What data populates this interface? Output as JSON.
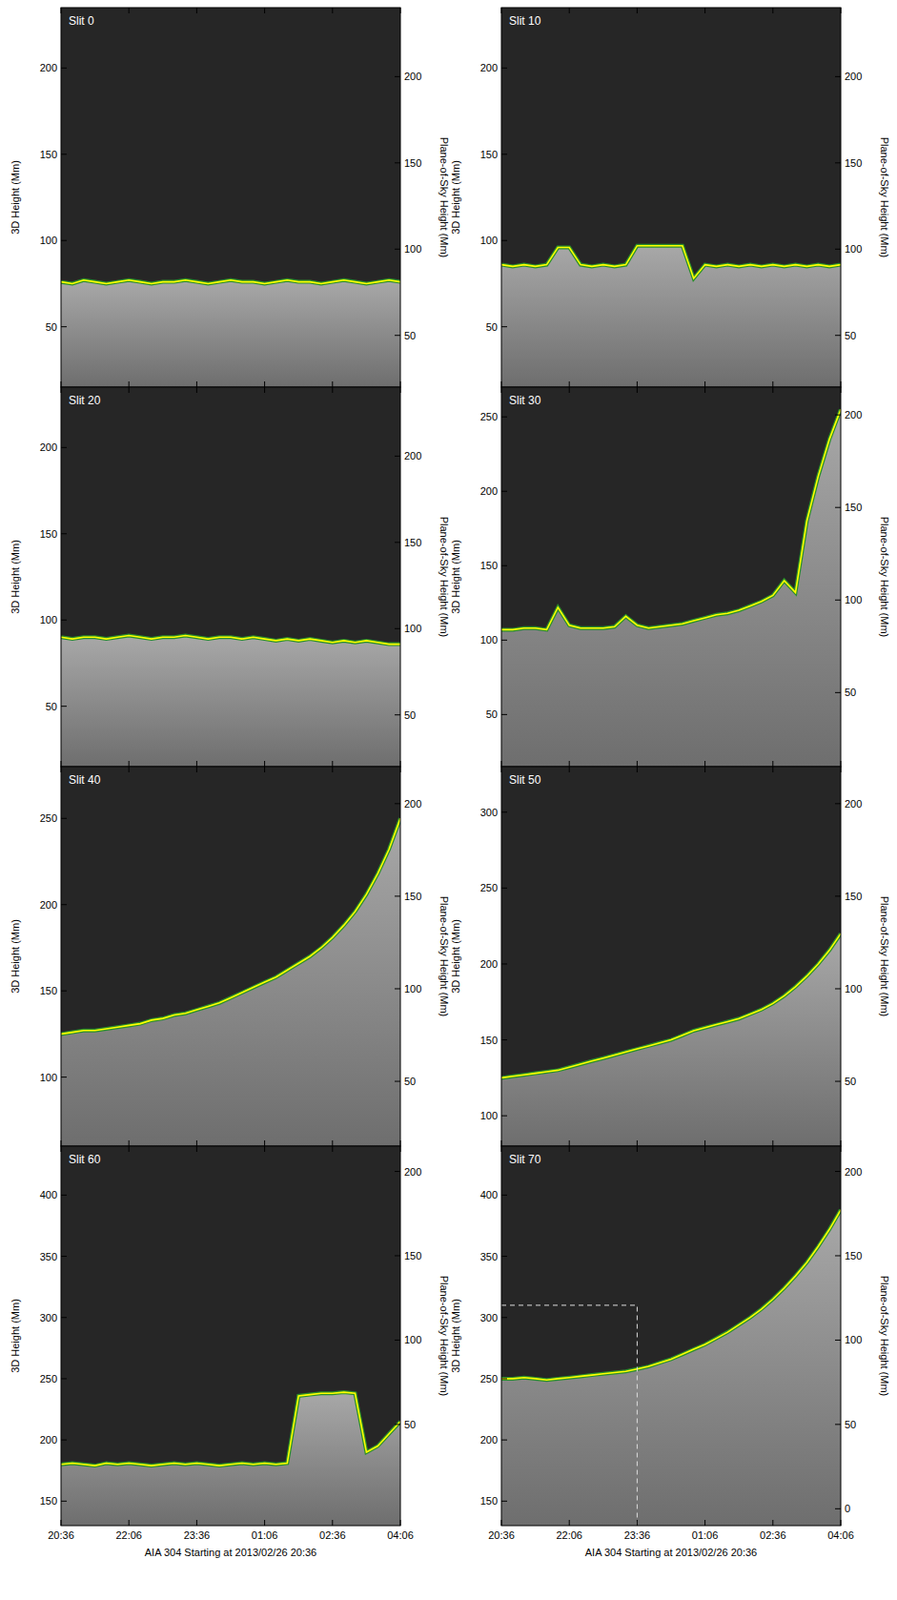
{
  "chart_data": [
    {
      "type": "line",
      "title": "Slit 0",
      "ylabel": "3D Height (Mm)",
      "y2label": "Plane-of-Sky Height (Mm)",
      "tick_labels": "y",
      "x": [
        0,
        0.25,
        0.5,
        0.75,
        1,
        1.25,
        1.5,
        1.75,
        2,
        2.25,
        2.5,
        2.75,
        3,
        3.25,
        3.5,
        3.75,
        4,
        4.25,
        4.5,
        4.75,
        5,
        5.25,
        5.5,
        5.75,
        6,
        6.25,
        6.5,
        6.75,
        7,
        7.25,
        7.5
      ],
      "xlim": [
        0,
        7.5
      ],
      "xticks": [
        {
          "value": 0,
          "label": "20:36"
        },
        {
          "value": 1.5,
          "label": "22:06"
        },
        {
          "value": 3,
          "label": "23:36"
        },
        {
          "value": 4.5,
          "label": "01:06"
        },
        {
          "value": 6,
          "label": "02:36"
        },
        {
          "value": 7.5,
          "label": "04:06"
        }
      ],
      "ylim": [
        15,
        235
      ],
      "yticks": [
        50,
        100,
        150,
        200
      ],
      "y2lim": [
        20,
        240
      ],
      "y2ticks": [
        50,
        100,
        150,
        200
      ],
      "series": [
        {
          "color": "#ffff00",
          "values": [
            76,
            75,
            77,
            76,
            75,
            76,
            77,
            76,
            75,
            76,
            76,
            77,
            76,
            75,
            76,
            77,
            76,
            76,
            75,
            76,
            77,
            76,
            76,
            75,
            76,
            77,
            76,
            75,
            76,
            77,
            76
          ]
        }
      ]
    },
    {
      "type": "line",
      "title": "Slit 10",
      "ylabel": "3D Height (Mm)",
      "y2label": "Plane-of-Sky Height (Mm)",
      "tick_labels": "y",
      "x": [
        0,
        0.25,
        0.5,
        0.75,
        1,
        1.25,
        1.5,
        1.75,
        2,
        2.25,
        2.5,
        2.75,
        3,
        3.25,
        3.5,
        3.75,
        4,
        4.25,
        4.5,
        4.75,
        5,
        5.25,
        5.5,
        5.75,
        6,
        6.25,
        6.5,
        6.75,
        7,
        7.25,
        7.5
      ],
      "xlim": [
        0,
        7.5
      ],
      "xticks": [
        {
          "value": 0,
          "label": "20:36"
        },
        {
          "value": 1.5,
          "label": "22:06"
        },
        {
          "value": 3,
          "label": "23:36"
        },
        {
          "value": 4.5,
          "label": "01:06"
        },
        {
          "value": 6,
          "label": "02:36"
        },
        {
          "value": 7.5,
          "label": "04:06"
        }
      ],
      "ylim": [
        15,
        235
      ],
      "yticks": [
        50,
        100,
        150,
        200
      ],
      "y2lim": [
        20,
        240
      ],
      "y2ticks": [
        50,
        100,
        150,
        200
      ],
      "series": [
        {
          "color": "#ffff00",
          "values": [
            86,
            85,
            86,
            85,
            86,
            96,
            96,
            86,
            85,
            86,
            85,
            86,
            97,
            97,
            97,
            97,
            97,
            78,
            86,
            85,
            86,
            85,
            86,
            85,
            86,
            85,
            86,
            85,
            86,
            85,
            86
          ]
        }
      ]
    },
    {
      "type": "line",
      "title": "Slit 20",
      "ylabel": "3D Height (Mm)",
      "y2label": "Plane-of-Sky Height (Mm)",
      "tick_labels": "y",
      "x": [
        0,
        0.25,
        0.5,
        0.75,
        1,
        1.25,
        1.5,
        1.75,
        2,
        2.25,
        2.5,
        2.75,
        3,
        3.25,
        3.5,
        3.75,
        4,
        4.25,
        4.5,
        4.75,
        5,
        5.25,
        5.5,
        5.75,
        6,
        6.25,
        6.5,
        6.75,
        7,
        7.25,
        7.5
      ],
      "xlim": [
        0,
        7.5
      ],
      "xticks": [
        {
          "value": 0,
          "label": "20:36"
        },
        {
          "value": 1.5,
          "label": "22:06"
        },
        {
          "value": 3,
          "label": "23:36"
        },
        {
          "value": 4.5,
          "label": "01:06"
        },
        {
          "value": 6,
          "label": "02:36"
        },
        {
          "value": 7.5,
          "label": "04:06"
        }
      ],
      "ylim": [
        15,
        235
      ],
      "yticks": [
        50,
        100,
        150,
        200
      ],
      "y2lim": [
        20,
        240
      ],
      "y2ticks": [
        50,
        100,
        150,
        200
      ],
      "series": [
        {
          "color": "#ffff00",
          "values": [
            90,
            89,
            90,
            90,
            89,
            90,
            91,
            90,
            89,
            90,
            90,
            91,
            90,
            89,
            90,
            90,
            89,
            90,
            89,
            88,
            89,
            88,
            89,
            88,
            87,
            88,
            87,
            88,
            87,
            86,
            86
          ]
        }
      ]
    },
    {
      "type": "line",
      "title": "Slit 30",
      "ylabel": "3D Height (Mm)",
      "y2label": "Plane-of-Sky Height (Mm)",
      "tick_labels": "y",
      "x": [
        0,
        0.25,
        0.5,
        0.75,
        1,
        1.25,
        1.5,
        1.75,
        2,
        2.25,
        2.5,
        2.75,
        3,
        3.25,
        3.5,
        3.75,
        4,
        4.25,
        4.5,
        4.75,
        5,
        5.25,
        5.5,
        5.75,
        6,
        6.25,
        6.5,
        6.75,
        7,
        7.25,
        7.5
      ],
      "xlim": [
        0,
        7.5
      ],
      "xticks": [
        {
          "value": 0,
          "label": "20:36"
        },
        {
          "value": 1.5,
          "label": "22:06"
        },
        {
          "value": 3,
          "label": "23:36"
        },
        {
          "value": 4.5,
          "label": "01:06"
        },
        {
          "value": 6,
          "label": "02:36"
        },
        {
          "value": 7.5,
          "label": "04:06"
        }
      ],
      "ylim": [
        15,
        270
      ],
      "yticks": [
        50,
        100,
        150,
        200,
        250
      ],
      "y2lim": [
        10,
        215
      ],
      "y2ticks": [
        50,
        100,
        150,
        200
      ],
      "series": [
        {
          "color": "#ffff00",
          "values": [
            107,
            107,
            108,
            108,
            107,
            122,
            110,
            108,
            108,
            108,
            109,
            116,
            110,
            108,
            109,
            110,
            111,
            113,
            115,
            117,
            118,
            120,
            123,
            126,
            130,
            140,
            132,
            180,
            210,
            235,
            255
          ]
        }
      ]
    },
    {
      "type": "line",
      "title": "Slit 40",
      "ylabel": "3D Height (Mm)",
      "y2label": "Plane-of-Sky Height (Mm)",
      "tick_labels": "y",
      "x": [
        0,
        0.25,
        0.5,
        0.75,
        1,
        1.25,
        1.5,
        1.75,
        2,
        2.25,
        2.5,
        2.75,
        3,
        3.25,
        3.5,
        3.75,
        4,
        4.25,
        4.5,
        4.75,
        5,
        5.25,
        5.5,
        5.75,
        6,
        6.25,
        6.5,
        6.75,
        7,
        7.25,
        7.5
      ],
      "xlim": [
        0,
        7.5
      ],
      "xticks": [
        {
          "value": 0,
          "label": "20:36"
        },
        {
          "value": 1.5,
          "label": "22:06"
        },
        {
          "value": 3,
          "label": "23:36"
        },
        {
          "value": 4.5,
          "label": "01:06"
        },
        {
          "value": 6,
          "label": "02:36"
        },
        {
          "value": 7.5,
          "label": "04:06"
        }
      ],
      "ylim": [
        60,
        280
      ],
      "yticks": [
        100,
        150,
        200,
        250
      ],
      "y2lim": [
        15,
        220
      ],
      "y2ticks": [
        50,
        100,
        150,
        200
      ],
      "series": [
        {
          "color": "#ffff00",
          "values": [
            125,
            126,
            127,
            127,
            128,
            129,
            130,
            131,
            133,
            134,
            136,
            137,
            139,
            141,
            143,
            146,
            149,
            152,
            155,
            158,
            162,
            166,
            170,
            175,
            181,
            188,
            196,
            206,
            218,
            232,
            250
          ]
        }
      ]
    },
    {
      "type": "line",
      "title": "Slit 50",
      "ylabel": "3D Height (Mm)",
      "y2label": "Plane-of-Sky Height (Mm)",
      "tick_labels": "y",
      "x": [
        0,
        0.25,
        0.5,
        0.75,
        1,
        1.25,
        1.5,
        1.75,
        2,
        2.25,
        2.5,
        2.75,
        3,
        3.25,
        3.5,
        3.75,
        4,
        4.25,
        4.5,
        4.75,
        5,
        5.25,
        5.5,
        5.75,
        6,
        6.25,
        6.5,
        6.75,
        7,
        7.25,
        7.5
      ],
      "xlim": [
        0,
        7.5
      ],
      "xticks": [
        {
          "value": 0,
          "label": "20:36"
        },
        {
          "value": 1.5,
          "label": "22:06"
        },
        {
          "value": 3,
          "label": "23:36"
        },
        {
          "value": 4.5,
          "label": "01:06"
        },
        {
          "value": 6,
          "label": "02:36"
        },
        {
          "value": 7.5,
          "label": "04:06"
        }
      ],
      "ylim": [
        80,
        330
      ],
      "yticks": [
        100,
        150,
        200,
        250,
        300
      ],
      "y2lim": [
        15,
        220
      ],
      "y2ticks": [
        50,
        100,
        150,
        200
      ],
      "series": [
        {
          "color": "#ffff00",
          "values": [
            125,
            126,
            127,
            128,
            129,
            130,
            132,
            134,
            136,
            138,
            140,
            142,
            144,
            146,
            148,
            150,
            153,
            156,
            158,
            160,
            162,
            164,
            167,
            170,
            174,
            179,
            185,
            192,
            200,
            209,
            220
          ]
        }
      ]
    },
    {
      "type": "line",
      "title": "Slit 60",
      "ylabel": "3D Height (Mm)",
      "y2label": "Plane-of-Sky Height (Mm)",
      "xlabel": "AIA 304 Starting at 2013/02/26 20:36",
      "tick_labels": true,
      "x": [
        0,
        0.25,
        0.5,
        0.75,
        1,
        1.25,
        1.5,
        1.75,
        2,
        2.25,
        2.5,
        2.75,
        3,
        3.25,
        3.5,
        3.75,
        4,
        4.25,
        4.5,
        4.75,
        5,
        5.25,
        5.5,
        5.75,
        6,
        6.25,
        6.5,
        6.75,
        7,
        7.25,
        7.5
      ],
      "xlim": [
        0,
        7.5
      ],
      "xticks": [
        {
          "value": 0,
          "label": "20:36"
        },
        {
          "value": 1.5,
          "label": "22:06"
        },
        {
          "value": 3,
          "label": "23:36"
        },
        {
          "value": 4.5,
          "label": "01:06"
        },
        {
          "value": 6,
          "label": "02:36"
        },
        {
          "value": 7.5,
          "label": "04:06"
        }
      ],
      "ylim": [
        130,
        440
      ],
      "yticks": [
        150,
        200,
        250,
        300,
        350,
        400
      ],
      "y2lim": [
        -10,
        215
      ],
      "y2ticks": [
        50,
        100,
        150,
        200
      ],
      "series": [
        {
          "color": "#ffff00",
          "values": [
            180,
            181,
            180,
            179,
            181,
            180,
            181,
            180,
            179,
            180,
            181,
            180,
            181,
            180,
            179,
            180,
            181,
            180,
            181,
            180,
            181,
            236,
            237,
            238,
            238,
            239,
            238,
            190,
            195,
            205,
            215
          ]
        }
      ]
    },
    {
      "type": "line",
      "title": "Slit 70",
      "ylabel": "3D Height (Mm)",
      "y2label": "Plane-of-Sky Height (Mm)",
      "xlabel": "AIA 304 Starting at 2013/02/26 20:36",
      "tick_labels": true,
      "x": [
        0,
        0.25,
        0.5,
        0.75,
        1,
        1.25,
        1.5,
        1.75,
        2,
        2.25,
        2.5,
        2.75,
        3,
        3.25,
        3.5,
        3.75,
        4,
        4.25,
        4.5,
        4.75,
        5,
        5.25,
        5.5,
        5.75,
        6,
        6.25,
        6.5,
        6.75,
        7,
        7.25,
        7.5
      ],
      "xlim": [
        0,
        7.5
      ],
      "xticks": [
        {
          "value": 0,
          "label": "20:36"
        },
        {
          "value": 1.5,
          "label": "22:06"
        },
        {
          "value": 3,
          "label": "23:36"
        },
        {
          "value": 4.5,
          "label": "01:06"
        },
        {
          "value": 6,
          "label": "02:36"
        },
        {
          "value": 7.5,
          "label": "04:06"
        }
      ],
      "ylim": [
        130,
        440
      ],
      "yticks": [
        150,
        200,
        250,
        300,
        350,
        400
      ],
      "y2lim": [
        -10,
        215
      ],
      "y2ticks": [
        0,
        50,
        100,
        150,
        200
      ],
      "reference_point": {
        "x": 3,
        "y": 310
      },
      "series": [
        {
          "color": "#ffff00",
          "values": [
            250,
            250,
            251,
            250,
            249,
            250,
            251,
            252,
            253,
            254,
            255,
            256,
            258,
            260,
            263,
            266,
            270,
            274,
            278,
            283,
            288,
            294,
            300,
            307,
            315,
            324,
            334,
            345,
            358,
            372,
            388
          ]
        }
      ]
    }
  ]
}
